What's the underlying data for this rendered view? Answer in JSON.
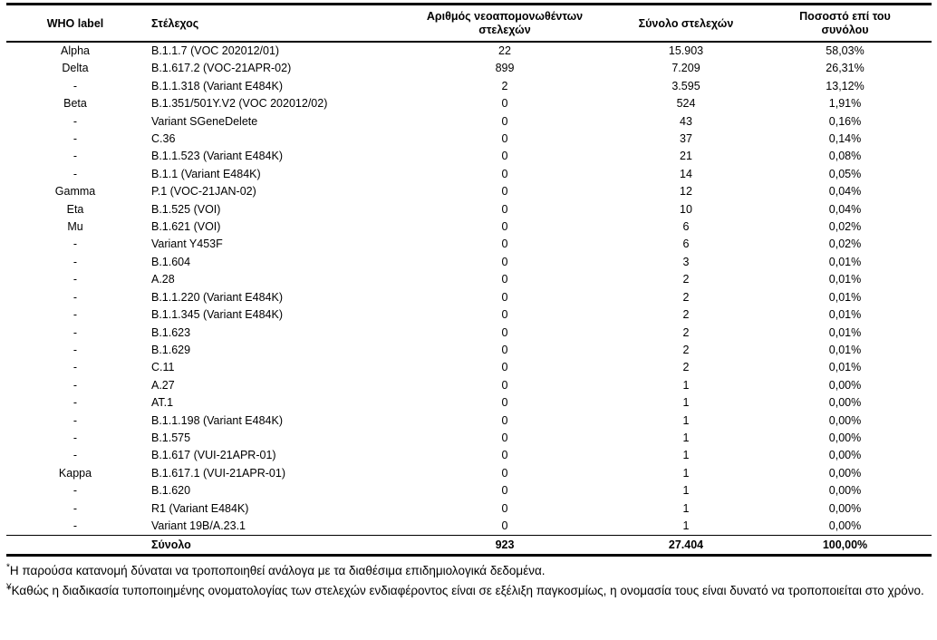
{
  "table": {
    "headers": {
      "who_label": "WHO label",
      "strain": "Στέλεχος",
      "new_isolates": "Αριθμός νεοαπομονωθέντων\nστελεχών",
      "total_strains": "Σύνολο στελεχών",
      "percentage": "Ποσοστό επί του\nσυνόλου"
    },
    "rows": [
      {
        "who": "Alpha",
        "strain": "B.1.1.7 (VOC 202012/01)",
        "new_isolates": "22",
        "total": "15.903",
        "pct": "58,03%"
      },
      {
        "who": "Delta",
        "strain": "B.1.617.2 (VOC-21APR-02)",
        "new_isolates": "899",
        "total": "7.209",
        "pct": "26,31%"
      },
      {
        "who": "-",
        "strain": "B.1.1.318 (Variant E484K)",
        "new_isolates": "2",
        "total": "3.595",
        "pct": "13,12%"
      },
      {
        "who": "Beta",
        "strain": "B.1.351/501Y.V2 (VOC 202012/02)",
        "new_isolates": "0",
        "total": "524",
        "pct": "1,91%"
      },
      {
        "who": "-",
        "strain": "Variant SGeneDelete",
        "new_isolates": "0",
        "total": "43",
        "pct": "0,16%"
      },
      {
        "who": "-",
        "strain": "C.36",
        "new_isolates": "0",
        "total": "37",
        "pct": "0,14%"
      },
      {
        "who": "-",
        "strain": "B.1.1.523 (Variant E484K)",
        "new_isolates": "0",
        "total": "21",
        "pct": "0,08%"
      },
      {
        "who": "-",
        "strain": "B.1.1 (Variant E484K)",
        "new_isolates": "0",
        "total": "14",
        "pct": "0,05%"
      },
      {
        "who": "Gamma",
        "strain": "P.1 (VOC-21JAN-02)",
        "new_isolates": "0",
        "total": "12",
        "pct": "0,04%"
      },
      {
        "who": "Eta",
        "strain": "B.1.525 (VOI)",
        "new_isolates": "0",
        "total": "10",
        "pct": "0,04%"
      },
      {
        "who": "Mu",
        "strain": "B.1.621 (VOI)",
        "new_isolates": "0",
        "total": "6",
        "pct": "0,02%"
      },
      {
        "who": "-",
        "strain": "Variant Y453F",
        "new_isolates": "0",
        "total": "6",
        "pct": "0,02%"
      },
      {
        "who": "-",
        "strain": "B.1.604",
        "new_isolates": "0",
        "total": "3",
        "pct": "0,01%"
      },
      {
        "who": "-",
        "strain": "A.28",
        "new_isolates": "0",
        "total": "2",
        "pct": "0,01%"
      },
      {
        "who": "-",
        "strain": "B.1.1.220 (Variant E484K)",
        "new_isolates": "0",
        "total": "2",
        "pct": "0,01%"
      },
      {
        "who": "-",
        "strain": "B.1.1.345 (Variant E484K)",
        "new_isolates": "0",
        "total": "2",
        "pct": "0,01%"
      },
      {
        "who": "-",
        "strain": "B.1.623",
        "new_isolates": "0",
        "total": "2",
        "pct": "0,01%"
      },
      {
        "who": "-",
        "strain": "B.1.629",
        "new_isolates": "0",
        "total": "2",
        "pct": "0,01%"
      },
      {
        "who": "-",
        "strain": "C.11",
        "new_isolates": "0",
        "total": "2",
        "pct": "0,01%"
      },
      {
        "who": "-",
        "strain": "A.27",
        "new_isolates": "0",
        "total": "1",
        "pct": "0,00%"
      },
      {
        "who": "-",
        "strain": "AT.1",
        "new_isolates": "0",
        "total": "1",
        "pct": "0,00%"
      },
      {
        "who": "-",
        "strain": "B.1.1.198 (Variant E484K)",
        "new_isolates": "0",
        "total": "1",
        "pct": "0,00%"
      },
      {
        "who": "-",
        "strain": "B.1.575",
        "new_isolates": "0",
        "total": "1",
        "pct": "0,00%"
      },
      {
        "who": "-",
        "strain": "B.1.617 (VUI-21APR-01)",
        "new_isolates": "0",
        "total": "1",
        "pct": "0,00%"
      },
      {
        "who": "Kappa",
        "strain": "B.1.617.1 (VUI-21APR-01)",
        "new_isolates": "0",
        "total": "1",
        "pct": "0,00%"
      },
      {
        "who": "-",
        "strain": "B.1.620",
        "new_isolates": "0",
        "total": "1",
        "pct": "0,00%"
      },
      {
        "who": "-",
        "strain": "R1 (Variant E484K)",
        "new_isolates": "0",
        "total": "1",
        "pct": "0,00%"
      },
      {
        "who": "-",
        "strain": "Variant 19B/A.23.1",
        "new_isolates": "0",
        "total": "1",
        "pct": "0,00%"
      }
    ],
    "total_row": {
      "label": "Σύνολο",
      "new_isolates": "923",
      "total_strains": "27.404",
      "percentage": "100,00%"
    }
  },
  "footnotes": [
    {
      "marker": "*",
      "text": "Η παρούσα κατανομή δύναται να τροποποιηθεί ανάλογα με τα διαθέσιμα επιδημιολογικά δεδομένα."
    },
    {
      "marker": "¥",
      "text": "Καθώς η διαδικασία τυποποιημένης ονοματολογίας των στελεχών ενδιαφέροντος είναι σε εξέλιξη παγκοσμίως, η ονομασία τους είναι δυνατό να τροποποιείται στο χρόνο."
    }
  ]
}
